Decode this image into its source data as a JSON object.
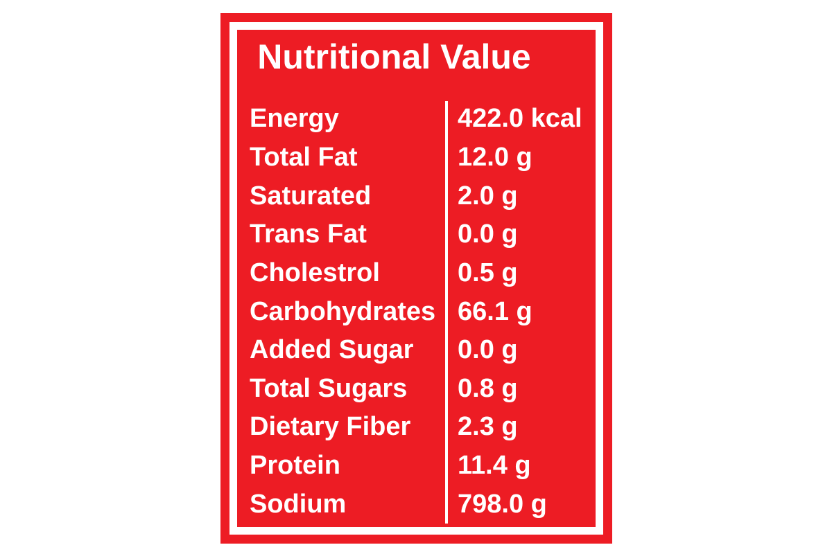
{
  "label": {
    "title": "Nutritional Value",
    "rows": [
      {
        "name": "Energy",
        "value": "422.0 kcal"
      },
      {
        "name": "Total Fat",
        "value": "12.0 g"
      },
      {
        "name": "Saturated",
        "value": "2.0 g"
      },
      {
        "name": "Trans Fat",
        "value": "0.0 g"
      },
      {
        "name": "Cholestrol",
        "value": "0.5 g"
      },
      {
        "name": "Carbohydrates",
        "value": "66.1 g"
      },
      {
        "name": "Added Sugar",
        "value": "0.0 g"
      },
      {
        "name": "Total Sugars",
        "value": "0.8 g"
      },
      {
        "name": "Dietary Fiber",
        "value": "2.3 g"
      },
      {
        "name": "Protein",
        "value": "11.4 g"
      },
      {
        "name": "Sodium",
        "value": "798.0 g"
      }
    ]
  },
  "colors": {
    "red": "#ED1C24",
    "text": "#FFFFFF",
    "page_background": "#FFFFFF"
  }
}
